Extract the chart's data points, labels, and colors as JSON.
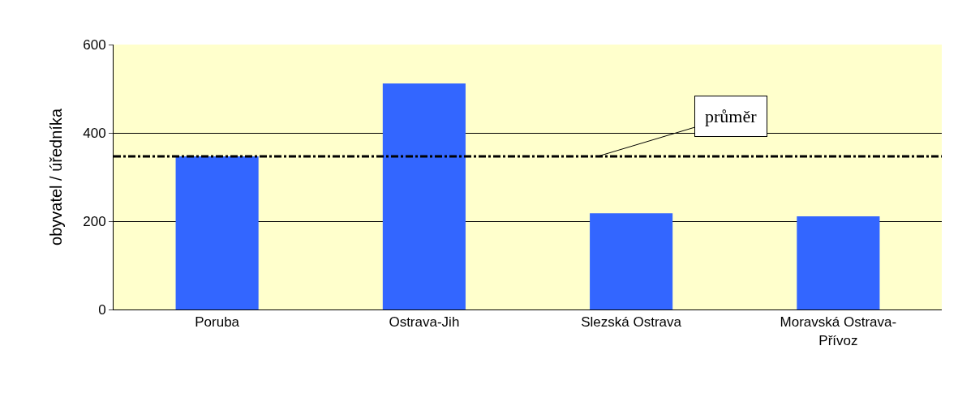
{
  "chart_data": {
    "type": "bar",
    "ylabel": "obyvatel / úředníka",
    "categories": [
      "Poruba",
      "Ostrava-Jih",
      "Slezská Ostrava",
      "Moravská Ostrava-Přívoz"
    ],
    "values": [
      347,
      512,
      218,
      211
    ],
    "color": "#3366ff",
    "ylim": [
      0,
      600
    ],
    "yticks": [
      0,
      200,
      400,
      600
    ],
    "grid": "y",
    "legend": false,
    "ref_lines": [
      {
        "axis": "y",
        "value": 347,
        "label": "průměr",
        "color": "#000000",
        "line_style": "dashdot"
      }
    ]
  }
}
